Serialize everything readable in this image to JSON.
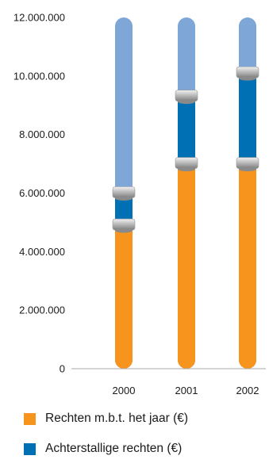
{
  "chart_data": {
    "type": "bar",
    "stacked": true,
    "categories": [
      "2000",
      "2001",
      "2002"
    ],
    "series": [
      {
        "name": "Rechten m.b.t. het jaar (€)",
        "values": [
          4900000,
          7000000,
          7000000
        ],
        "color": "#f7941d"
      },
      {
        "name": "Achterstallige rechten (€)",
        "values": [
          1100000,
          2300000,
          3100000
        ],
        "color": "#0070b4"
      }
    ],
    "background_bar": {
      "value": 12000000,
      "color": "#7ea7d8"
    },
    "yticks": [
      0,
      2000000,
      4000000,
      6000000,
      8000000,
      10000000,
      12000000
    ],
    "ytick_labels": [
      "0",
      "2.000.000",
      "4.000.000",
      "6.000.000",
      "8.000.000",
      "10.000.000",
      "12.000.000"
    ],
    "ylim": [
      0,
      12000000
    ],
    "legend_position": "bottom",
    "grid": false
  },
  "colors": {
    "connector_light": "#e4e4e4",
    "connector_dark": "#8a8a8a",
    "axis": "#aaaaaa"
  }
}
